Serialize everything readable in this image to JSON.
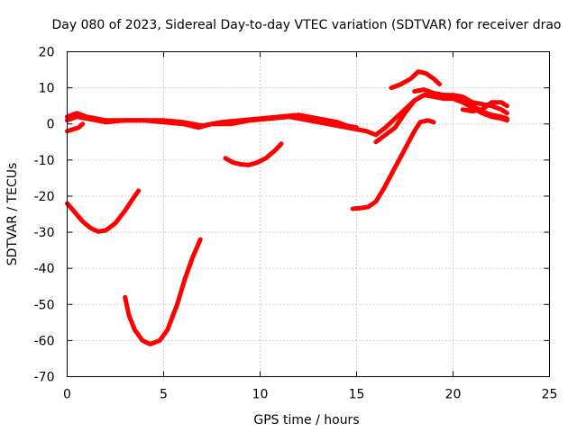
{
  "chart_data": {
    "type": "line",
    "title": "Day 080 of 2023, Sidereal Day-to-day VTEC variation (SDTVAR) for receiver drao",
    "xlabel": "GPS time / hours",
    "ylabel": "SDTVAR / TECUs",
    "xlim": [
      0,
      25
    ],
    "ylim": [
      -70,
      20
    ],
    "xticks": [
      0,
      5,
      10,
      15,
      20,
      25
    ],
    "yticks": [
      -70,
      -60,
      -50,
      -40,
      -30,
      -20,
      -10,
      0,
      10,
      20
    ],
    "grid": true,
    "line_color": "#ff0000",
    "series": [
      {
        "name": "s1",
        "x": [
          0.0,
          0.5,
          1.0,
          1.5,
          2.0,
          3.0,
          4.0,
          5.0,
          6.0,
          6.5,
          7.0,
          7.5,
          8.0,
          9.0,
          10.0,
          11.0,
          12.0,
          12.5,
          13.0,
          14.0,
          14.5,
          15.0
        ],
        "y": [
          2,
          3,
          2,
          1.5,
          1,
          1,
          1,
          1,
          0.5,
          0,
          -0.5,
          0,
          0.5,
          1,
          1.5,
          2,
          2.5,
          2,
          1.5,
          0.5,
          -0.5,
          -1
        ]
      },
      {
        "name": "s2",
        "x": [
          0.0,
          0.5,
          1.0,
          2.0,
          3.0,
          4.0,
          5.0,
          6.0,
          6.8,
          7.5,
          8.5,
          9.5,
          10.5,
          11.5,
          12.5,
          13.5,
          14.5,
          15.0
        ],
        "y": [
          1,
          2,
          1.5,
          0.5,
          1,
          1,
          0.5,
          0,
          -1,
          0,
          0,
          1,
          1.5,
          2,
          1,
          0,
          -1,
          -1.5
        ]
      },
      {
        "name": "s3",
        "x": [
          0.0,
          0.3,
          0.6,
          0.8
        ],
        "y": [
          -2,
          -1.5,
          -1,
          0
        ]
      },
      {
        "name": "s4",
        "x": [
          0.0,
          0.4,
          0.8,
          1.2,
          1.6,
          2.0,
          2.5,
          3.0,
          3.5,
          3.7
        ],
        "y": [
          -22,
          -24.5,
          -27,
          -28.8,
          -29.8,
          -29.5,
          -27.5,
          -24,
          -20,
          -18.5
        ]
      },
      {
        "name": "s5",
        "x": [
          3.0,
          3.2,
          3.5,
          3.9,
          4.3,
          4.8,
          5.2,
          5.7,
          6.1,
          6.5,
          6.9
        ],
        "y": [
          -48,
          -53,
          -57,
          -60,
          -61,
          -60,
          -57,
          -50,
          -43,
          -37,
          -32
        ]
      },
      {
        "name": "s6",
        "x": [
          8.2,
          8.6,
          9.0,
          9.4,
          9.8,
          10.3,
          10.8,
          11.1
        ],
        "y": [
          -9.5,
          -10.7,
          -11.2,
          -11.4,
          -10.8,
          -9.5,
          -7.2,
          -5.5
        ]
      },
      {
        "name": "s7",
        "x": [
          14.8,
          15.2,
          15.6,
          16.0,
          16.4,
          16.8,
          17.2,
          17.6,
          18.0,
          18.3,
          18.7,
          19.0
        ],
        "y": [
          -23.5,
          -23.3,
          -23,
          -21.5,
          -18,
          -14,
          -10,
          -6,
          -2,
          0.5,
          1,
          0.5
        ]
      },
      {
        "name": "s8",
        "x": [
          15.0,
          15.5,
          16.0,
          16.5,
          17.0,
          17.5,
          18.0,
          18.5,
          19.0,
          19.5,
          20.0,
          20.5,
          21.0,
          21.5,
          22.0,
          22.5,
          22.8
        ],
        "y": [
          -1.5,
          -2,
          -3,
          -1,
          1.5,
          4,
          6.5,
          8,
          8.5,
          8,
          7.5,
          6.5,
          5,
          3.5,
          2.5,
          2,
          1.5
        ]
      },
      {
        "name": "s9",
        "x": [
          16.0,
          16.5,
          17.0,
          17.5,
          18.0,
          18.5,
          19.0,
          19.5,
          20.0,
          20.5,
          21.0,
          21.5,
          22.0,
          22.5,
          22.8
        ],
        "y": [
          -5,
          -3,
          -1,
          3,
          6.5,
          8,
          7.5,
          7,
          7,
          6,
          4.5,
          3,
          2,
          1.5,
          1
        ]
      },
      {
        "name": "s10",
        "x": [
          16.8,
          17.3,
          17.8,
          18.2,
          18.6,
          19.0,
          19.3
        ],
        "y": [
          10,
          11,
          12.5,
          14.5,
          14,
          12.5,
          11
        ]
      },
      {
        "name": "s11",
        "x": [
          18.0,
          18.5,
          19.0,
          19.5,
          20.0,
          20.5,
          21.0,
          21.5,
          22.0,
          22.5,
          22.8
        ],
        "y": [
          9,
          9.5,
          8.5,
          8,
          8,
          7.5,
          6,
          5.5,
          5,
          4,
          3
        ]
      },
      {
        "name": "s12",
        "x": [
          20.5,
          21.0,
          21.5,
          22.0,
          22.5,
          22.8
        ],
        "y": [
          4,
          3.5,
          4,
          6,
          6,
          5
        ]
      }
    ]
  }
}
